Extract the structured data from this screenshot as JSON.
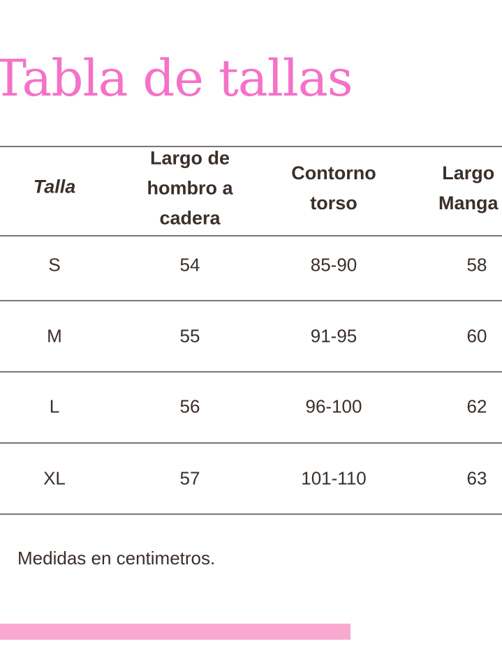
{
  "title": "Tabla de tallas",
  "table": {
    "headers": [
      "Talla",
      "Largo de\nhombro a\ncadera",
      "Contorno\ntorso",
      "Largo\nManga"
    ],
    "rows": [
      [
        "S",
        "54",
        "85-90",
        "58"
      ],
      [
        "M",
        "55",
        "91-95",
        "60"
      ],
      [
        "L",
        "56",
        "96-100",
        "62"
      ],
      [
        "XL",
        "57",
        "101-110",
        "63"
      ]
    ]
  },
  "note": "Medidas en centimetros.",
  "colors": {
    "title": "#f472c8",
    "accent_bar": "#f9a8d0",
    "rule": "#7a7474",
    "text": "#3a2f2a"
  }
}
